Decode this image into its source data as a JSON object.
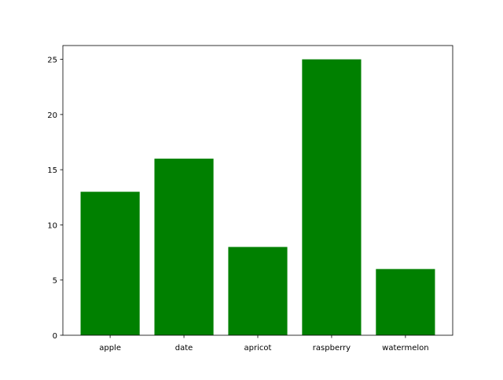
{
  "chart_data": {
    "type": "bar",
    "categories": [
      "apple",
      "date",
      "apricot",
      "raspberry",
      "watermelon"
    ],
    "values": [
      13,
      16,
      8,
      25,
      6
    ],
    "title": "",
    "xlabel": "",
    "ylabel": "",
    "ylim": [
      0,
      26.25
    ],
    "yticks": [
      0,
      5,
      10,
      15,
      20,
      25
    ],
    "bar_color": "#008000",
    "grid": false,
    "legend": "none"
  }
}
